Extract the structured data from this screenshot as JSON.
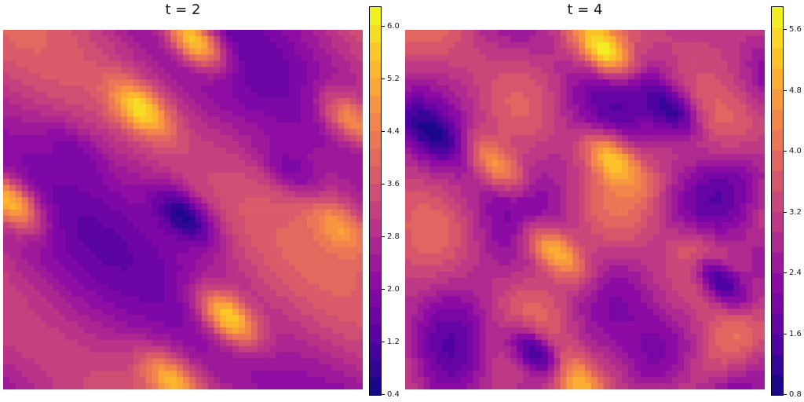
{
  "chart_data": [
    {
      "type": "heatmap",
      "title": "t = 2",
      "colormap": "plasma",
      "colorbar": {
        "min": 0.4,
        "max": 6.3,
        "levels": 22,
        "ticks": [
          0.4,
          1.2,
          2.0,
          2.8,
          3.6,
          4.4,
          5.2,
          6.0
        ]
      },
      "features": [
        {
          "x": 0.38,
          "y": 0.22,
          "value": 6.0
        },
        {
          "x": 0.53,
          "y": 0.03,
          "value": 5.6
        },
        {
          "x": 0.63,
          "y": 0.8,
          "value": 5.7
        },
        {
          "x": 0.47,
          "y": 0.98,
          "value": 5.3
        },
        {
          "x": 0.93,
          "y": 0.55,
          "value": 5.0
        },
        {
          "x": 0.97,
          "y": 0.25,
          "value": 4.6
        },
        {
          "x": 0.02,
          "y": 0.48,
          "value": 5.3
        },
        {
          "x": 0.5,
          "y": 0.52,
          "value": 0.6
        },
        {
          "x": 0.8,
          "y": 0.38,
          "value": 1.9
        },
        {
          "x": 0.2,
          "y": 0.35,
          "value": 1.8
        }
      ]
    },
    {
      "type": "heatmap",
      "title": "t = 4",
      "colormap": "plasma",
      "colorbar": {
        "min": 0.8,
        "max": 5.9,
        "levels": 19,
        "ticks": [
          0.8,
          1.6,
          2.4,
          3.2,
          4.0,
          4.8,
          5.6
        ]
      },
      "features": [
        {
          "x": 0.55,
          "y": 0.05,
          "value": 5.8
        },
        {
          "x": 0.58,
          "y": 0.37,
          "value": 5.3
        },
        {
          "x": 0.42,
          "y": 0.62,
          "value": 5.0
        },
        {
          "x": 0.46,
          "y": 0.97,
          "value": 5.7
        },
        {
          "x": 0.84,
          "y": 0.66,
          "value": 4.8
        },
        {
          "x": 0.25,
          "y": 0.37,
          "value": 4.6
        },
        {
          "x": 0.07,
          "y": 0.28,
          "value": 0.9
        },
        {
          "x": 0.73,
          "y": 0.22,
          "value": 1.2
        },
        {
          "x": 0.88,
          "y": 0.7,
          "value": 1.3
        },
        {
          "x": 0.36,
          "y": 0.9,
          "value": 1.4
        }
      ]
    }
  ]
}
